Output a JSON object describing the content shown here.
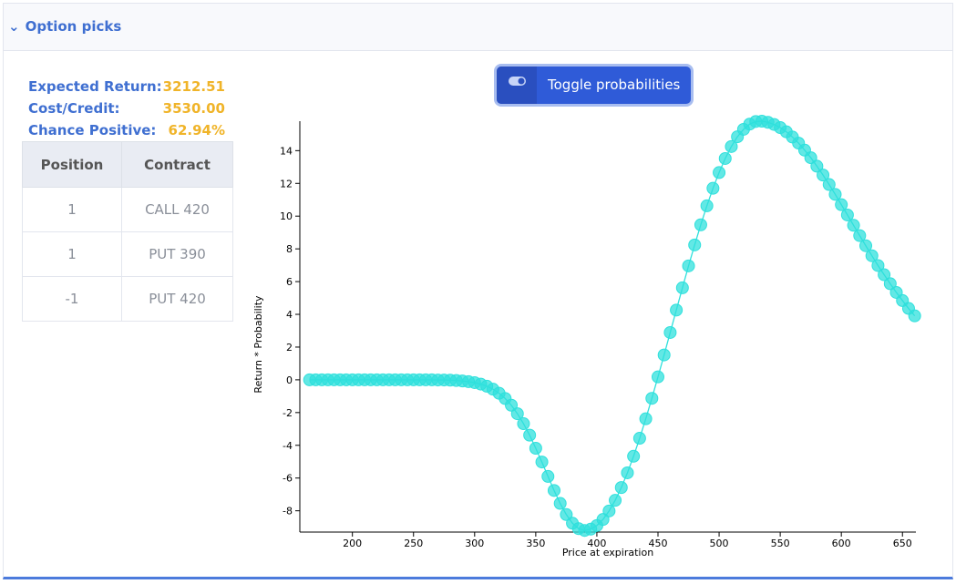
{
  "header": {
    "title": "Option picks"
  },
  "summary": [
    {
      "label": "Expected Return:",
      "value": "3212.51"
    },
    {
      "label": "Cost/Credit:",
      "value": "3530.00"
    },
    {
      "label": "Chance Positive:",
      "value": "62.94%"
    }
  ],
  "table": {
    "headers": [
      "Position",
      "Contract"
    ],
    "rows": [
      [
        "1",
        "CALL 420"
      ],
      [
        "1",
        "PUT 390"
      ],
      [
        "-1",
        "PUT 420"
      ]
    ]
  },
  "toggle": {
    "label": "Toggle probabilities"
  },
  "chart_data": {
    "type": "line",
    "x_label": "Price at expiration",
    "y_label": "Return * Probability",
    "xlim": [
      157,
      661
    ],
    "ylim": [
      -9.3,
      15.8
    ],
    "xticks": [
      200,
      250,
      300,
      350,
      400,
      450,
      500,
      550,
      600,
      650
    ],
    "yticks": [
      -8,
      -6,
      -4,
      -2,
      0,
      2,
      4,
      6,
      8,
      10,
      12,
      14
    ],
    "markers": true,
    "x": [
      165,
      170,
      175,
      180,
      185,
      190,
      195,
      200,
      205,
      210,
      215,
      220,
      225,
      230,
      235,
      240,
      245,
      250,
      255,
      260,
      265,
      270,
      275,
      280,
      285,
      290,
      295,
      300,
      305,
      310,
      315,
      320,
      325,
      330,
      335,
      340,
      345,
      350,
      355,
      360,
      365,
      370,
      375,
      380,
      385,
      390,
      395,
      400,
      405,
      410,
      415,
      420,
      425,
      430,
      435,
      440,
      445,
      450,
      455,
      460,
      465,
      470,
      475,
      480,
      485,
      490,
      495,
      500,
      505,
      510,
      515,
      520,
      525,
      530,
      535,
      540,
      545,
      550,
      555,
      560,
      565,
      570,
      575,
      580,
      585,
      590,
      595,
      600,
      605,
      610,
      615,
      620,
      625,
      630,
      635,
      640,
      645,
      650,
      655,
      660
    ],
    "series": [
      {
        "color": "#2fe0dc",
        "values": [
          0,
          0,
          0,
          0,
          0,
          0,
          0,
          0,
          0,
          0,
          0,
          0,
          0,
          0,
          0,
          0,
          0,
          0,
          0,
          0,
          0,
          -0.01,
          -0.01,
          -0.02,
          -0.04,
          -0.07,
          -0.11,
          -0.17,
          -0.26,
          -0.39,
          -0.57,
          -0.82,
          -1.14,
          -1.55,
          -2.07,
          -2.68,
          -3.38,
          -4.18,
          -5.02,
          -5.9,
          -6.76,
          -7.55,
          -8.23,
          -8.76,
          -9.09,
          -9.2,
          -9.12,
          -8.9,
          -8.53,
          -8.01,
          -7.36,
          -6.58,
          -5.68,
          -4.67,
          -3.57,
          -2.38,
          -1.13,
          0.18,
          1.52,
          2.89,
          4.26,
          5.62,
          6.96,
          8.24,
          9.47,
          10.63,
          11.7,
          12.66,
          13.52,
          14.25,
          14.85,
          15.3,
          15.62,
          15.78,
          15.8,
          15.73,
          15.6,
          15.41,
          15.15,
          14.83,
          14.46,
          14.03,
          13.57,
          13.05,
          12.51,
          11.93,
          11.33,
          10.7,
          10.07,
          9.44,
          8.81,
          8.19,
          7.58,
          6.98,
          6.42,
          5.87,
          5.34,
          4.84,
          4.36,
          3.91
        ]
      }
    ]
  }
}
